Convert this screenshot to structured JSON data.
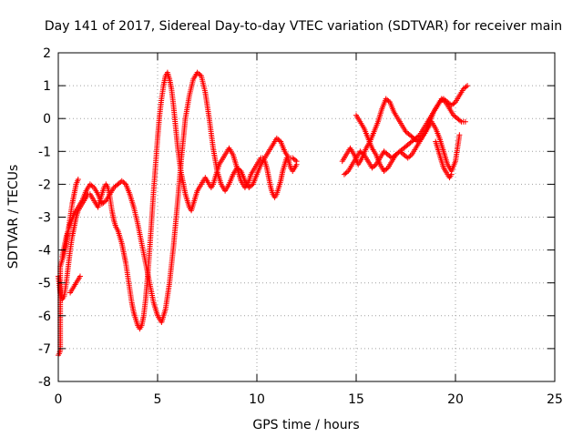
{
  "chart_data": {
    "type": "scatter",
    "title": "Day 141 of 2017, Sidereal Day-to-day VTEC variation (SDTVAR) for receiver main",
    "xlabel": "GPS time / hours",
    "ylabel": "SDTVAR / TECUs",
    "xlim": [
      0,
      25
    ],
    "ylim": [
      -8,
      2
    ],
    "xticks": [
      "0",
      "5",
      "10",
      "15",
      "20",
      "25"
    ],
    "yticks": [
      "2",
      "1",
      "0",
      "-1",
      "-2",
      "-3",
      "-4",
      "-5",
      "-6",
      "-7",
      "-8"
    ],
    "grid": true,
    "marker": "+",
    "color": "#ff0000",
    "series": [
      {
        "x": [
          0.0,
          0.05,
          0.1,
          0.1,
          0.2,
          0.3,
          0.4,
          0.5,
          0.6,
          0.7,
          0.8,
          0.9,
          1.0
        ],
        "y": [
          -7.2,
          -7.15,
          -7.05,
          -4.5,
          -4.3,
          -4.1,
          -3.8,
          -3.4,
          -3.0,
          -2.6,
          -2.3,
          -2.0,
          -1.85
        ]
      },
      {
        "x": [
          0.0,
          0.1,
          0.2,
          0.3,
          0.4,
          0.5,
          0.6,
          0.7,
          0.8,
          0.9,
          1.0,
          1.1,
          1.2,
          1.3,
          1.4,
          1.5,
          1.6,
          1.7,
          1.8,
          1.9,
          2.0,
          2.1,
          2.2,
          2.3,
          2.4,
          2.5,
          2.6,
          2.7,
          2.8,
          2.9,
          3.0,
          3.1,
          3.2,
          3.3,
          3.4,
          3.5,
          3.6,
          3.7,
          3.8,
          3.9,
          4.0,
          4.1,
          4.2,
          4.3,
          4.4,
          4.5,
          4.6,
          4.7,
          4.8,
          4.9,
          5.0,
          5.1,
          5.2,
          5.3,
          5.4,
          5.5,
          5.6,
          5.7,
          5.8,
          5.9,
          6.0,
          6.1,
          6.2,
          6.3,
          6.4,
          6.5,
          6.6,
          6.7,
          6.8,
          6.9,
          7.0,
          7.1,
          7.2,
          7.3,
          7.4,
          7.5,
          7.6,
          7.7,
          7.8,
          7.9,
          8.0,
          8.1,
          8.2,
          8.3,
          8.4,
          8.5,
          8.6,
          8.7,
          8.8,
          8.9,
          9.0,
          9.1,
          9.2,
          9.3,
          9.4,
          9.5,
          9.6,
          9.7,
          9.8,
          9.9,
          10.0,
          10.1,
          10.2,
          10.3,
          10.4,
          10.5,
          10.6,
          10.7,
          10.8,
          10.9,
          11.0,
          11.1,
          11.2,
          11.3,
          11.4,
          11.5,
          11.6,
          11.7,
          11.8,
          11.9,
          12.0
        ],
        "y": [
          -4.8,
          -5.3,
          -5.5,
          -5.4,
          -5.0,
          -4.5,
          -4.0,
          -3.6,
          -3.3,
          -3.0,
          -2.8,
          -2.7,
          -2.6,
          -2.5,
          -2.4,
          -2.3,
          -2.3,
          -2.4,
          -2.5,
          -2.6,
          -2.7,
          -2.5,
          -2.3,
          -2.1,
          -2.0,
          -2.1,
          -2.4,
          -2.8,
          -3.1,
          -3.3,
          -3.4,
          -3.6,
          -3.8,
          -4.1,
          -4.4,
          -4.8,
          -5.2,
          -5.6,
          -5.9,
          -6.1,
          -6.3,
          -6.4,
          -6.3,
          -6.0,
          -5.5,
          -4.8,
          -4.0,
          -3.1,
          -2.2,
          -1.4,
          -0.6,
          0.1,
          0.6,
          1.0,
          1.3,
          1.4,
          1.2,
          0.9,
          0.4,
          -0.2,
          -0.8,
          -1.3,
          -1.7,
          -2.0,
          -2.3,
          -2.5,
          -2.7,
          -2.8,
          -2.6,
          -2.4,
          -2.2,
          -2.1,
          -2.0,
          -1.9,
          -1.8,
          -1.9,
          -2.0,
          -2.1,
          -2.0,
          -1.8,
          -1.6,
          -1.4,
          -1.3,
          -1.2,
          -1.1,
          -1.0,
          -0.9,
          -1.0,
          -1.1,
          -1.3,
          -1.5,
          -1.7,
          -1.9,
          -2.0,
          -2.1,
          -2.0,
          -1.9,
          -1.7,
          -1.6,
          -1.5,
          -1.4,
          -1.3,
          -1.2,
          -1.2,
          -1.3,
          -1.5,
          -1.8,
          -2.1,
          -2.3,
          -2.4,
          -2.3,
          -2.1,
          -1.9,
          -1.6,
          -1.4,
          -1.2,
          -1.3,
          -1.5,
          -1.6,
          -1.5,
          -1.4
        ]
      },
      {
        "x": [
          0.2,
          0.4,
          0.6,
          0.8,
          1.0,
          1.2,
          1.4,
          1.6,
          1.8,
          2.0,
          2.2,
          2.4,
          2.6,
          2.8,
          3.0,
          3.2,
          3.4,
          3.6,
          3.8,
          4.0,
          4.2,
          4.4,
          4.6,
          4.8,
          5.0,
          5.2,
          5.4,
          5.6,
          5.8,
          6.0,
          6.2,
          6.4,
          6.6,
          6.8,
          7.0,
          7.2,
          7.4,
          7.6,
          7.8,
          8.0,
          8.2,
          8.4,
          8.6,
          8.8,
          9.0,
          9.2,
          9.4,
          9.6,
          9.8,
          10.0,
          10.2,
          10.4,
          10.6,
          10.8,
          11.0,
          11.2,
          11.4,
          11.6,
          11.8,
          12.0
        ],
        "y": [
          -4.2,
          -3.6,
          -3.2,
          -2.9,
          -2.7,
          -2.5,
          -2.2,
          -2.0,
          -2.1,
          -2.3,
          -2.6,
          -2.5,
          -2.3,
          -2.1,
          -2.0,
          -1.9,
          -2.0,
          -2.3,
          -2.7,
          -3.2,
          -3.8,
          -4.4,
          -5.0,
          -5.6,
          -6.0,
          -6.2,
          -5.8,
          -5.0,
          -3.9,
          -2.6,
          -1.2,
          0.0,
          0.7,
          1.2,
          1.4,
          1.3,
          0.8,
          0.0,
          -0.9,
          -1.6,
          -2.0,
          -2.2,
          -2.0,
          -1.7,
          -1.5,
          -1.6,
          -1.9,
          -2.1,
          -2.0,
          -1.7,
          -1.4,
          -1.2,
          -1.0,
          -0.8,
          -0.6,
          -0.7,
          -1.0,
          -1.2,
          -1.2,
          -1.3
        ]
      },
      {
        "x": [
          0.6,
          0.7,
          0.8,
          0.9,
          1.0,
          1.1
        ],
        "y": [
          -5.3,
          -5.2,
          -5.1,
          -5.0,
          -4.9,
          -4.8
        ]
      },
      {
        "x": [
          14.3,
          14.5,
          14.7,
          14.9,
          15.1,
          15.3,
          15.5,
          15.7,
          15.9,
          16.1,
          16.3,
          16.5,
          16.7,
          16.9,
          17.1,
          17.3,
          17.5,
          17.7,
          17.9,
          18.1,
          18.3,
          18.5,
          18.7,
          18.9,
          19.1,
          19.3,
          19.5,
          19.7,
          19.9,
          20.1,
          20.3,
          20.5
        ],
        "y": [
          -1.3,
          -1.1,
          -0.9,
          -1.1,
          -1.4,
          -1.2,
          -0.9,
          -0.7,
          -0.4,
          -0.1,
          0.3,
          0.6,
          0.5,
          0.2,
          0.0,
          -0.2,
          -0.4,
          -0.5,
          -0.6,
          -0.7,
          -0.6,
          -0.4,
          -0.1,
          0.2,
          0.4,
          0.6,
          0.5,
          0.3,
          0.1,
          0.0,
          -0.1,
          -0.1
        ]
      },
      {
        "x": [
          14.4,
          14.6,
          14.8,
          15.0,
          15.2,
          15.4,
          15.6,
          15.8,
          16.0,
          16.2,
          16.4,
          16.6,
          16.8,
          17.0,
          17.2,
          17.4,
          17.6,
          17.8,
          18.0,
          18.2,
          18.4,
          18.6,
          18.8,
          19.0,
          19.2,
          19.4,
          19.6,
          19.8,
          20.0,
          20.2,
          20.4,
          20.6
        ],
        "y": [
          -1.7,
          -1.6,
          -1.4,
          -1.2,
          -1.0,
          -1.1,
          -1.3,
          -1.5,
          -1.4,
          -1.2,
          -1.0,
          -1.1,
          -1.2,
          -1.1,
          -1.0,
          -0.9,
          -0.8,
          -0.7,
          -0.6,
          -0.5,
          -0.3,
          -0.1,
          0.1,
          0.3,
          0.5,
          0.6,
          0.5,
          0.4,
          0.5,
          0.7,
          0.9,
          1.0
        ]
      },
      {
        "x": [
          15.0,
          15.2,
          15.4,
          15.6,
          15.8,
          16.0,
          16.2,
          16.4,
          16.6,
          16.8,
          17.0,
          17.2,
          17.4,
          17.6,
          17.8,
          18.0,
          18.2,
          18.4,
          18.6,
          18.8,
          19.0,
          19.2,
          19.4,
          19.6,
          19.8,
          20.0,
          20.2
        ],
        "y": [
          0.1,
          -0.1,
          -0.3,
          -0.6,
          -0.9,
          -1.1,
          -1.4,
          -1.6,
          -1.5,
          -1.3,
          -1.1,
          -1.0,
          -1.1,
          -1.2,
          -1.1,
          -0.9,
          -0.7,
          -0.5,
          -0.3,
          -0.1,
          -0.3,
          -0.6,
          -1.0,
          -1.4,
          -1.6,
          -1.3,
          -0.5
        ]
      },
      {
        "x": [
          19.0,
          19.1,
          19.2,
          19.3,
          19.4,
          19.5,
          19.6,
          19.7,
          19.8
        ],
        "y": [
          -0.7,
          -0.9,
          -1.1,
          -1.3,
          -1.5,
          -1.6,
          -1.7,
          -1.8,
          -1.7
        ]
      }
    ]
  }
}
